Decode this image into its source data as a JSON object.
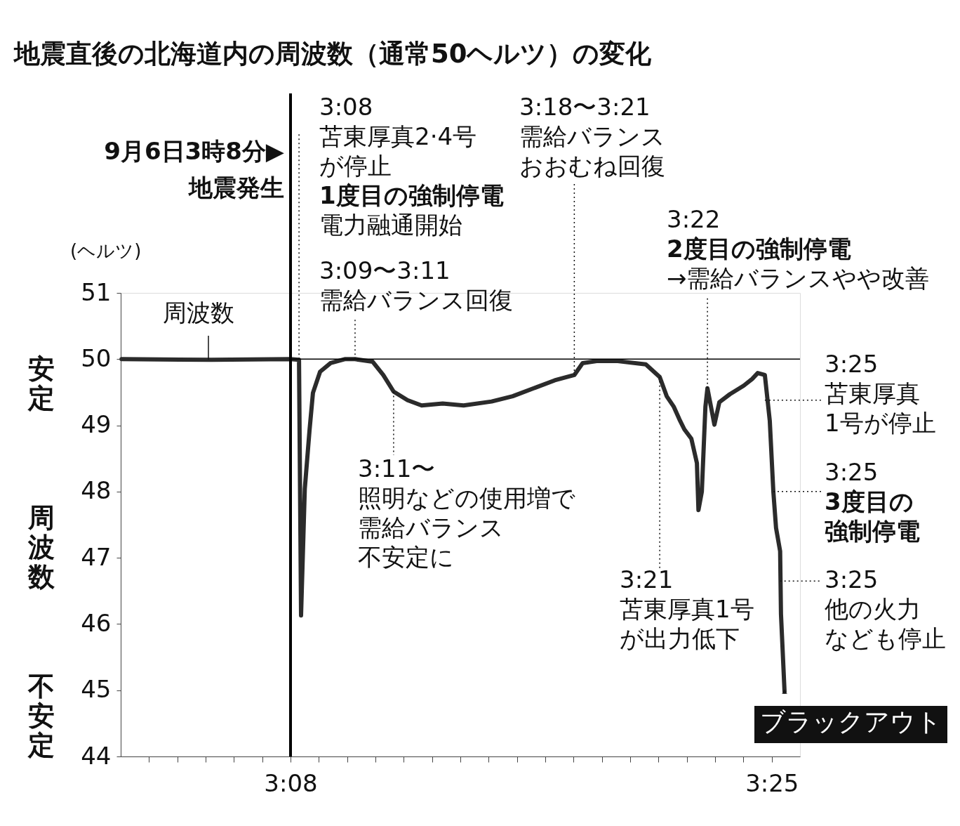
{
  "chart_data": {
    "type": "line",
    "title": "地震直後の北海道内の周波数（通常50ヘルツ）の変化",
    "ylabel": "(ヘルツ)",
    "series": [
      {
        "name": "周波数",
        "color": "#2b2b2b",
        "x": [
          3.0338,
          3.0867,
          3.1333,
          3.1383,
          3.1395,
          3.1417,
          3.1445,
          3.1465,
          3.1507,
          3.1569,
          3.1652,
          3.1713,
          3.1817,
          3.1879,
          3.194,
          3.2022,
          3.2105,
          3.2229,
          3.2352,
          3.2517,
          3.2641,
          3.2765,
          3.2889,
          3.3004,
          3.3053,
          3.3136,
          3.326,
          3.3425,
          3.3507,
          3.3548,
          3.359,
          3.3623,
          3.3652,
          3.3693,
          3.3726,
          3.3735,
          3.3755,
          3.3776,
          3.3788,
          3.3817,
          3.3829,
          3.3858,
          3.392,
          3.4002,
          3.4051,
          3.4084,
          3.4126,
          3.4155,
          3.4176,
          3.4192,
          3.4216,
          3.4221,
          3.4242
        ],
        "values": [
          50.0,
          49.99,
          50.0,
          49.99,
          46.13,
          48.04,
          48.93,
          49.49,
          49.81,
          49.94,
          50.0,
          50.0,
          49.96,
          49.76,
          49.51,
          49.38,
          49.3,
          49.33,
          49.3,
          49.36,
          49.44,
          49.56,
          49.68,
          49.76,
          49.94,
          49.97,
          49.97,
          49.92,
          49.73,
          49.44,
          49.28,
          49.09,
          48.94,
          48.8,
          48.43,
          47.72,
          48.0,
          49.28,
          49.56,
          49.17,
          49.01,
          49.35,
          49.47,
          49.6,
          49.7,
          49.79,
          49.76,
          49.07,
          48.0,
          47.45,
          47.1,
          46.15,
          44.98
        ]
      }
    ],
    "xlim": [
      3.0333,
      3.4333
    ],
    "xticks": [
      {
        "value": 3.05,
        "label": null
      },
      {
        "value": 3.0667,
        "label": null
      },
      {
        "value": 3.0833,
        "label": null
      },
      {
        "value": 3.1,
        "label": null
      },
      {
        "value": 3.1167,
        "label": null
      },
      {
        "value": 3.1333,
        "label": "3:08"
      },
      {
        "value": 3.15,
        "label": null
      },
      {
        "value": 3.1667,
        "label": null
      },
      {
        "value": 3.1833,
        "label": null
      },
      {
        "value": 3.2,
        "label": null
      },
      {
        "value": 3.2167,
        "label": null
      },
      {
        "value": 3.2333,
        "label": null
      },
      {
        "value": 3.25,
        "label": null
      },
      {
        "value": 3.2667,
        "label": null
      },
      {
        "value": 3.2833,
        "label": null
      },
      {
        "value": 3.3,
        "label": null
      },
      {
        "value": 3.3167,
        "label": null
      },
      {
        "value": 3.3333,
        "label": null
      },
      {
        "value": 3.35,
        "label": null
      },
      {
        "value": 3.3667,
        "label": null
      },
      {
        "value": 3.3833,
        "label": null
      },
      {
        "value": 3.4,
        "label": null
      },
      {
        "value": 3.4167,
        "label": "3:25"
      }
    ],
    "ylim": [
      44,
      51
    ],
    "yticks": [
      44,
      45,
      46,
      47,
      48,
      49,
      50,
      51
    ],
    "ref_lines": [
      {
        "axis": "y",
        "value": 50,
        "color": "#000000",
        "line_style": "solid"
      },
      {
        "axis": "x",
        "value": 3.1333,
        "label": "9月6日3時8分▶\n地震発生",
        "color": "#000000",
        "line_style": "solid"
      }
    ],
    "annotations": [
      {
        "text": "3:08\n苫東厚真2·4号が停止1度目の強制停電電力融通開始",
        "x": 3.1383,
        "y": 50.0
      },
      {
        "text": "3:09〜3:11\n需給バランス回復",
        "x": 3.1713,
        "y": 50.0
      },
      {
        "text": "3:18〜3:21\n需給バランスおおむね回復",
        "x": 3.3004,
        "y": 49.76
      },
      {
        "text": "3:22\n2度目の強制停電\n→需給バランスやや改善",
        "x": 3.3788,
        "y": 49.56
      },
      {
        "text": "3:11〜照明などの使用増で需給バランス不安定に",
        "x": 3.194,
        "y": 49.51
      },
      {
        "text": "3:21\n苫東厚真1号が出力低下",
        "x": 3.3507,
        "y": 49.73
      },
      {
        "text": "3:25\n苫東厚真\n1号が停止",
        "x": 3.4126,
        "y": 49.38
      },
      {
        "text": "3:25\n3度目の強制停電",
        "x": 3.4176,
        "y": 48.0
      },
      {
        "text": "3:25\n他の火力なども停止",
        "x": 3.4216,
        "y": 46.65
      },
      {
        "text": "ブラックアウト",
        "x": 3.4242,
        "y": 44.98
      },
      "安定",
      "周波数",
      "不安定"
    ],
    "marker": "none",
    "line_style": "solid",
    "grid": false
  }
}
